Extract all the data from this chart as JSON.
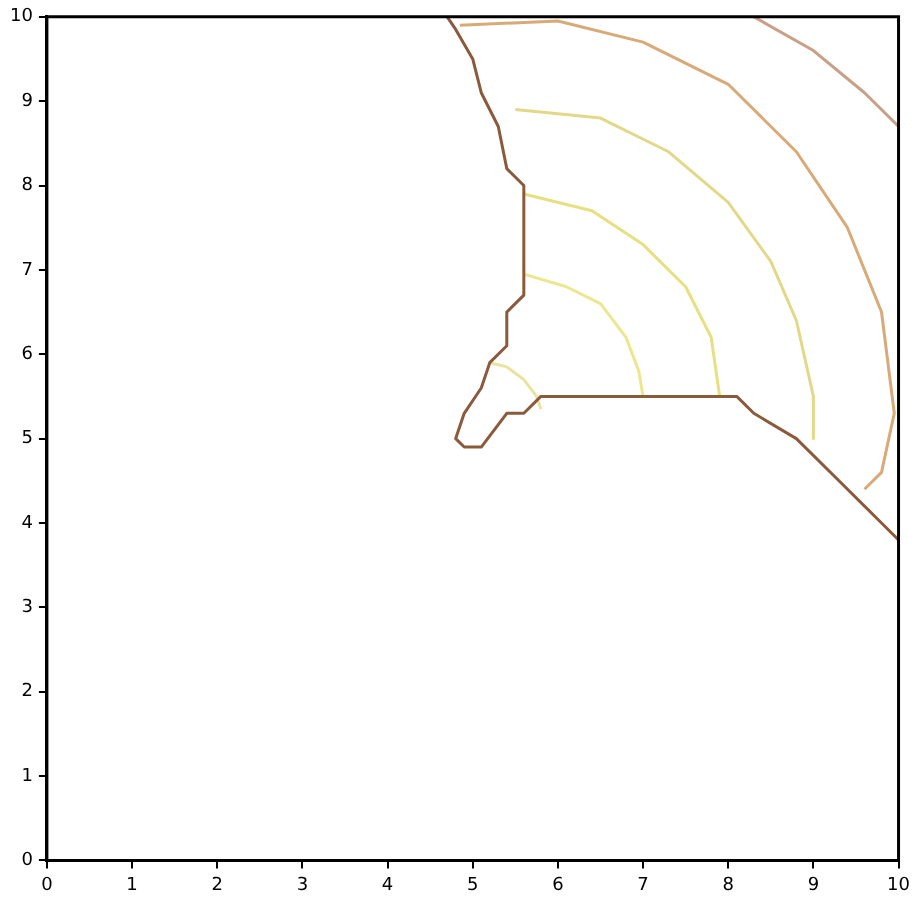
{
  "chart_data": {
    "type": "line",
    "xlim": [
      0,
      10
    ],
    "ylim": [
      0,
      10
    ],
    "xticks": [
      0,
      1,
      2,
      3,
      4,
      5,
      6,
      7,
      8,
      9,
      10
    ],
    "yticks": [
      0,
      1,
      2,
      3,
      4,
      5,
      6,
      7,
      8,
      9,
      10
    ],
    "grid": false,
    "legend": false,
    "marker": "none",
    "line_style": "solid",
    "series": [
      {
        "color": "#8b5a3c",
        "x": [
          4.7,
          4.8,
          5.0,
          5.1,
          5.3,
          5.4,
          5.6,
          5.6,
          5.4,
          5.4,
          5.2,
          5.1,
          4.9,
          4.8,
          4.9,
          5.1,
          5.4,
          5.6,
          5.8,
          8.1,
          8.3,
          8.8,
          9.3,
          9.8,
          10.0
        ],
        "values": [
          10.0,
          9.85,
          9.5,
          9.1,
          8.7,
          8.2,
          8.0,
          6.7,
          6.5,
          6.1,
          5.9,
          5.6,
          5.3,
          5.0,
          4.9,
          4.9,
          5.3,
          5.3,
          5.5,
          5.5,
          5.3,
          5.0,
          4.5,
          4.0,
          3.8
        ]
      },
      {
        "color": "#e8e4a0",
        "x": [
          5.2,
          5.4,
          5.6,
          5.75,
          5.8
        ],
        "values": [
          5.9,
          5.85,
          5.7,
          5.5,
          5.35
        ]
      },
      {
        "color": "#ece690",
        "x": [
          5.6,
          6.1,
          6.5,
          6.8,
          6.95,
          7.0
        ],
        "values": [
          6.95,
          6.8,
          6.6,
          6.2,
          5.8,
          5.5
        ]
      },
      {
        "color": "#e6e080",
        "x": [
          5.6,
          6.4,
          7.0,
          7.5,
          7.8,
          7.9
        ],
        "values": [
          7.9,
          7.7,
          7.3,
          6.8,
          6.2,
          5.5
        ]
      },
      {
        "color": "#e2d888",
        "x": [
          5.5,
          6.5,
          7.3,
          8.0,
          8.5,
          8.8,
          9.0,
          9.0
        ],
        "values": [
          8.9,
          8.8,
          8.4,
          7.8,
          7.1,
          6.4,
          5.5,
          5.0
        ]
      },
      {
        "color": "#d8aa78",
        "x": [
          4.85,
          6.0,
          7.0,
          8.0,
          8.8,
          9.4,
          9.8,
          9.95,
          9.8,
          9.6
        ],
        "values": [
          9.9,
          9.95,
          9.7,
          9.2,
          8.4,
          7.5,
          6.5,
          5.3,
          4.6,
          4.4
        ]
      },
      {
        "color": "#c8a088",
        "x": [
          8.3,
          9.0,
          9.6,
          10.0
        ],
        "values": [
          10.0,
          9.6,
          9.1,
          8.7
        ]
      }
    ]
  }
}
